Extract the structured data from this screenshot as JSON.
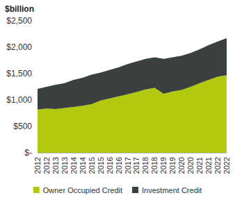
{
  "chart_data": {
    "type": "area",
    "title": "$billion",
    "stacked": true,
    "grid": false,
    "legend": "bottom",
    "categories": [
      "2012",
      "2012",
      "2013",
      "2013",
      "2014",
      "2014",
      "2015",
      "2015",
      "2016",
      "2016",
      "2017",
      "2017",
      "2018",
      "2018",
      "2019",
      "2019",
      "2020",
      "2020",
      "2021",
      "2021",
      "2022",
      "2022"
    ],
    "series": [
      {
        "name": "Owner Occupied Credit",
        "color": "#b3c90f",
        "values": [
          820,
          840,
          830,
          850,
          870,
          890,
          920,
          990,
          1030,
          1070,
          1110,
          1150,
          1200,
          1230,
          1120,
          1160,
          1190,
          1250,
          1320,
          1380,
          1440,
          1470
        ]
      },
      {
        "name": "Investment Credit",
        "color": "#3a3f3f",
        "values": [
          390,
          410,
          460,
          470,
          510,
          530,
          560,
          530,
          540,
          550,
          570,
          580,
          580,
          580,
          660,
          650,
          650,
          640,
          640,
          660,
          670,
          700
        ]
      }
    ],
    "ylim": [
      0,
      2500
    ],
    "yticks": [
      {
        "value": 0,
        "label": "$-"
      },
      {
        "value": 500,
        "label": "$500"
      },
      {
        "value": 1000,
        "label": "$1,000"
      },
      {
        "value": 1500,
        "label": "$1,500"
      },
      {
        "value": 2000,
        "label": "$2,000"
      },
      {
        "value": 2500,
        "label": "$2,500"
      }
    ]
  }
}
